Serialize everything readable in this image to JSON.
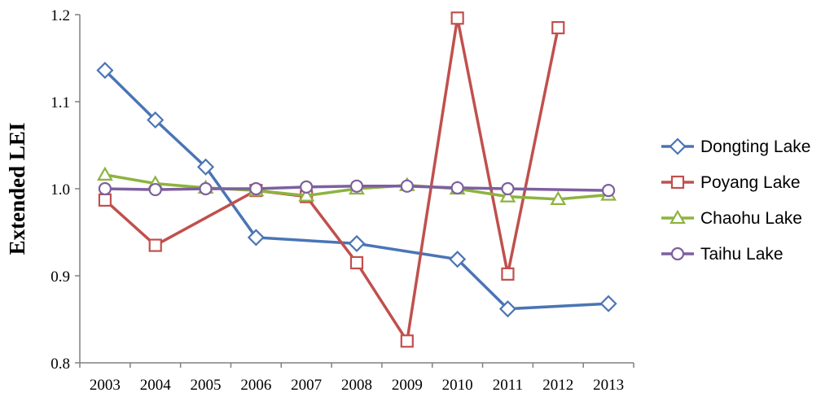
{
  "chart_data": {
    "type": "line",
    "title": "",
    "xlabel": "",
    "ylabel": "Extended LEI",
    "categories": [
      "2003",
      "2004",
      "2005",
      "2006",
      "2007",
      "2008",
      "2009",
      "2010",
      "2011",
      "2012",
      "2013"
    ],
    "ylim": [
      0.8,
      1.2
    ],
    "yticks": [
      "0.8",
      "0.9",
      "1.0",
      "1.1",
      "1.2"
    ],
    "grid": false,
    "legend_position": "right",
    "series": [
      {
        "name": "Dongting Lake",
        "color": "#4a75b5",
        "marker": "diamond",
        "values": [
          1.136,
          1.079,
          1.025,
          0.944,
          null,
          0.937,
          null,
          0.919,
          0.862,
          null,
          0.868
        ]
      },
      {
        "name": "Poyang Lake",
        "color": "#c0504d",
        "marker": "square",
        "values": [
          0.987,
          0.935,
          null,
          0.998,
          0.991,
          0.915,
          0.825,
          1.196,
          0.902,
          1.185,
          null
        ]
      },
      {
        "name": "Chaohu Lake",
        "color": "#8db33f",
        "marker": "triangle",
        "values": [
          1.016,
          1.006,
          1.001,
          0.998,
          0.992,
          1.0,
          1.004,
          1.0,
          0.991,
          0.988,
          0.993
        ]
      },
      {
        "name": "Taihu Lake",
        "color": "#7d5fa0",
        "marker": "circle",
        "values": [
          1.0,
          0.999,
          1.0,
          1.0,
          1.002,
          1.003,
          1.003,
          1.001,
          1.0,
          null,
          0.998
        ]
      }
    ]
  }
}
